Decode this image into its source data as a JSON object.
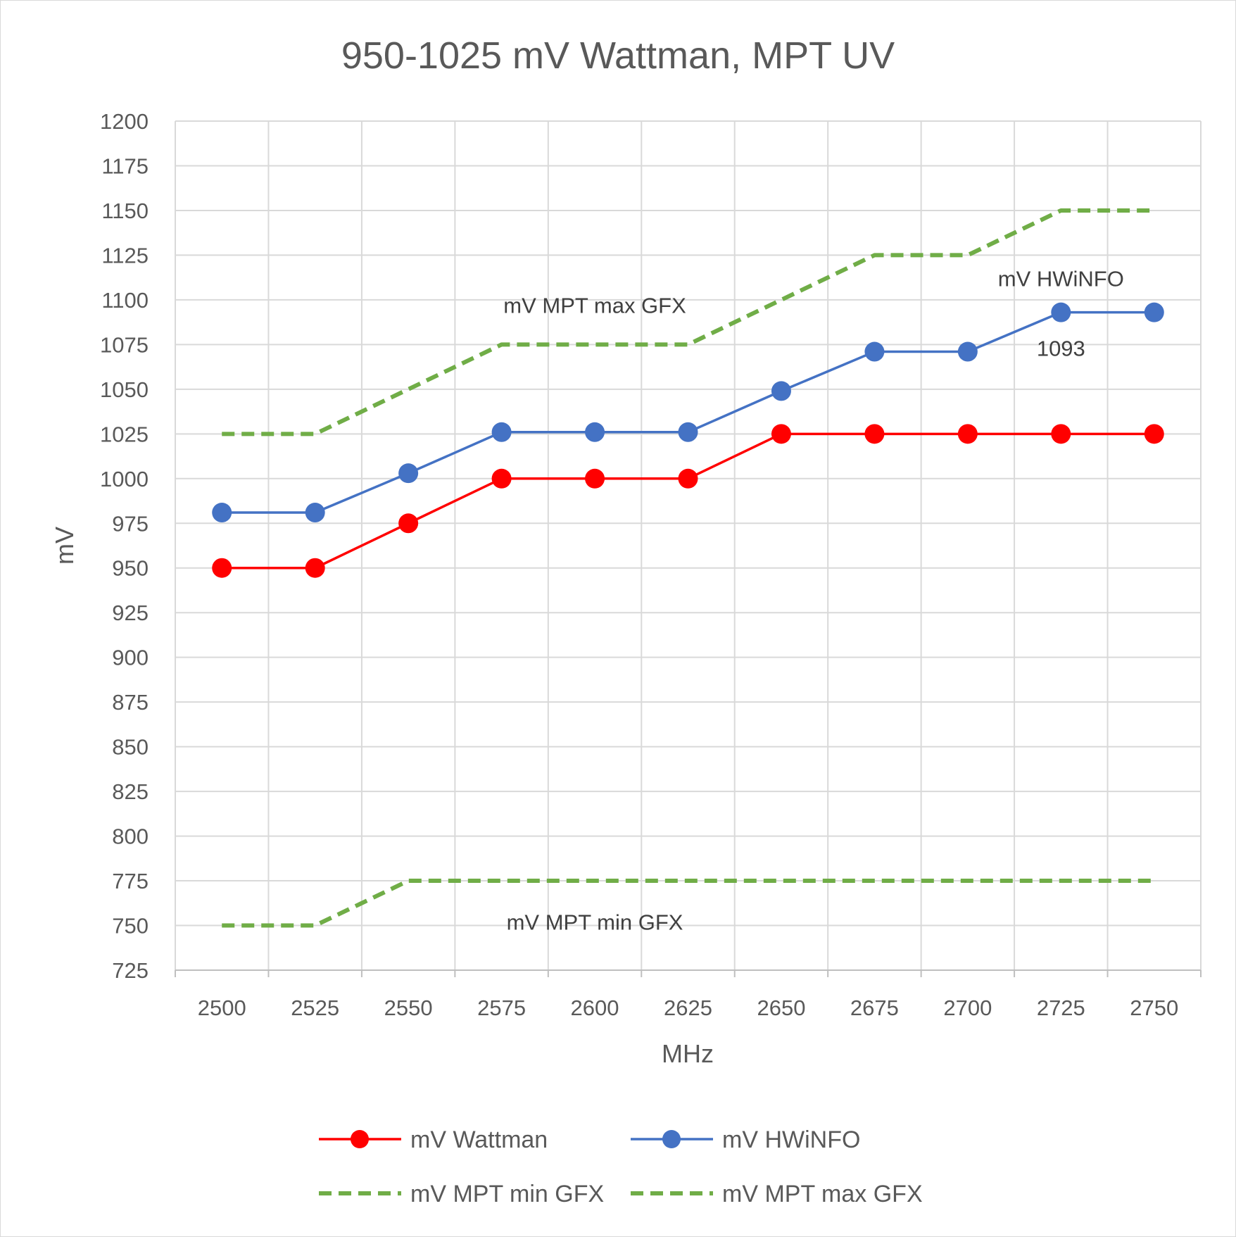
{
  "chart_data": {
    "type": "line",
    "title": "950-1025 mV Wattman, MPT UV",
    "xlabel": "MHz",
    "ylabel": "mV",
    "x": [
      2500,
      2525,
      2550,
      2575,
      2600,
      2625,
      2650,
      2675,
      2700,
      2725,
      2750
    ],
    "ylim": [
      725,
      1200
    ],
    "y_ticks": [
      725,
      750,
      775,
      800,
      825,
      850,
      875,
      900,
      925,
      950,
      975,
      1000,
      1025,
      1050,
      1075,
      1100,
      1125,
      1150,
      1175,
      1200
    ],
    "grid": true,
    "legend_position": "bottom",
    "series": [
      {
        "name": "mV Wattman",
        "values": [
          950,
          950,
          975,
          1000,
          1000,
          1000,
          1025,
          1025,
          1025,
          1025,
          1025
        ],
        "color": "#ff0000",
        "style": "solid-markers"
      },
      {
        "name": "mV HWiNFO",
        "values": [
          981,
          981,
          1003,
          1026,
          1026,
          1026,
          1049,
          1071,
          1071,
          1093,
          1093
        ],
        "color": "#4472c4",
        "style": "solid-markers"
      },
      {
        "name": "mV MPT min GFX",
        "values": [
          750,
          750,
          775,
          775,
          775,
          775,
          775,
          775,
          775,
          775,
          775
        ],
        "color": "#70ad47",
        "style": "dashed"
      },
      {
        "name": "mV MPT max GFX",
        "values": [
          1025,
          1025,
          1050,
          1075,
          1075,
          1075,
          1100,
          1125,
          1125,
          1150,
          1150
        ],
        "color": "#70ad47",
        "style": "dashed"
      }
    ],
    "annotations": [
      {
        "text": "mV MPT max GFX",
        "x": 2600,
        "y": 1097
      },
      {
        "text": "mV HWiNFO",
        "x": 2725,
        "y": 1112
      },
      {
        "text": "1093",
        "x": 2725,
        "y": 1073
      },
      {
        "text": "mV MPT min GFX",
        "x": 2600,
        "y": 752
      }
    ]
  }
}
